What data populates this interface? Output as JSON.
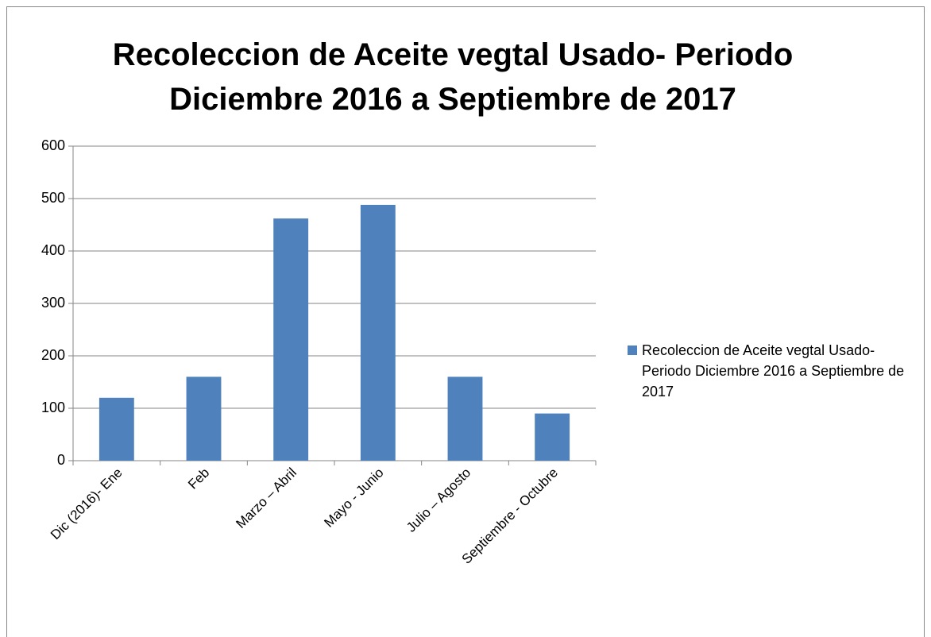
{
  "chart_data": {
    "type": "bar",
    "title": [
      "Recoleccion de Aceite vegtal Usado- Periodo",
      "Diciembre 2016 a Septiembre de 2017"
    ],
    "categories": [
      "Dic (2016)- Ene",
      "Feb",
      "Marzo – Abril",
      "Mayo - Junio",
      "Julio – Agosto",
      "Septiembre - Octubre"
    ],
    "series": [
      {
        "name": "Recoleccion de Aceite vegtal Usado- Periodo Diciembre 2016 a Septiembre de 2017",
        "color": "#4f81bd",
        "values": [
          120,
          160,
          462,
          488,
          160,
          90
        ]
      }
    ],
    "ylim": [
      0,
      600
    ],
    "yticks": [
      0,
      100,
      200,
      300,
      400,
      500,
      600
    ],
    "grid": true,
    "legend": "right"
  }
}
